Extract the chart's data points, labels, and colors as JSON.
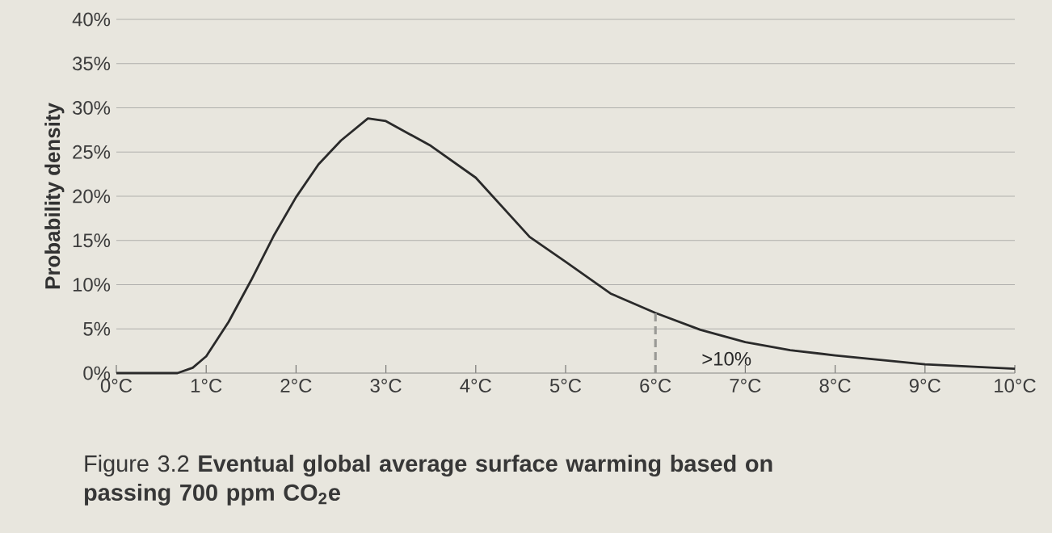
{
  "chart_data": {
    "type": "line",
    "ylabel": "Probability density",
    "x": [
      0,
      0.68,
      0.85,
      1,
      1.25,
      1.5,
      1.75,
      2,
      2.25,
      2.5,
      2.8,
      3,
      3.5,
      4,
      4.6,
      5,
      5.5,
      6,
      6.5,
      7,
      7.5,
      8,
      9,
      10
    ],
    "series": [
      {
        "color": "#2a2a2a",
        "values": [
          0,
          0,
          0.6,
          1.9,
          5.8,
          10.5,
          15.5,
          19.9,
          23.6,
          26.3,
          28.8,
          28.5,
          25.7,
          22.1,
          15.4,
          12.6,
          9.0,
          6.8,
          4.9,
          3.5,
          2.6,
          2.0,
          1.0,
          0.5
        ]
      }
    ],
    "xlim": [
      0,
      10
    ],
    "xticks": [
      {
        "value": 0,
        "label": "0°C"
      },
      {
        "value": 1,
        "label": "1°C"
      },
      {
        "value": 2,
        "label": "2°C"
      },
      {
        "value": 3,
        "label": "3°C"
      },
      {
        "value": 4,
        "label": "4°C"
      },
      {
        "value": 5,
        "label": "5°C"
      },
      {
        "value": 6,
        "label": "6°C"
      },
      {
        "value": 7,
        "label": "7°C"
      },
      {
        "value": 8,
        "label": "8°C"
      },
      {
        "value": 9,
        "label": "9°C"
      },
      {
        "value": 10,
        "label": "10°C"
      }
    ],
    "ylim": [
      0,
      40
    ],
    "yticks": [
      {
        "value": 0,
        "label": "0%"
      },
      {
        "value": 5,
        "label": "5%"
      },
      {
        "value": 10,
        "label": "10%"
      },
      {
        "value": 15,
        "label": "15%"
      },
      {
        "value": 20,
        "label": "20%"
      },
      {
        "value": 25,
        "label": "25%"
      },
      {
        "value": 30,
        "label": "30%"
      },
      {
        "value": 35,
        "label": "35%"
      },
      {
        "value": 40,
        "label": "40%"
      }
    ],
    "grid": "y",
    "marker": "none",
    "line_style": "solid",
    "ref_lines": [
      {
        "axis": "x",
        "value": 6,
        "color": "#9a9a96",
        "line_style": "dashed"
      }
    ],
    "annotations": [
      ">10%",
      "Figure 3.2 **Eventual global average surface warming based on passing 700 ppm CO$_{2}$e**"
    ]
  }
}
